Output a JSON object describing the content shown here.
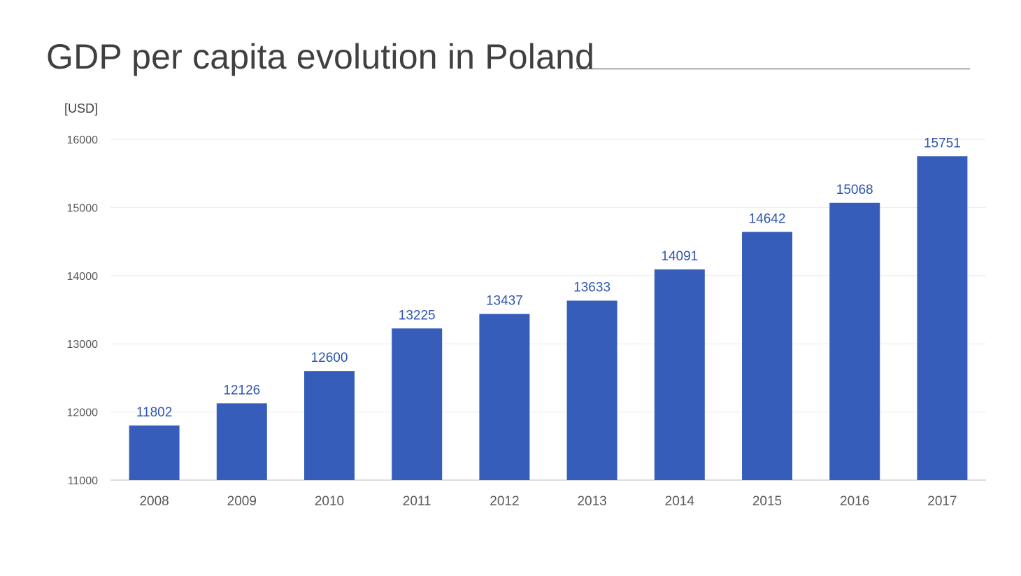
{
  "slide": {
    "title": "GDP per capita evolution in Poland"
  },
  "chart_data": {
    "type": "bar",
    "title": "",
    "ylabel": "[USD]",
    "xlabel": "",
    "categories": [
      "2008",
      "2009",
      "2010",
      "2011",
      "2012",
      "2013",
      "2014",
      "2015",
      "2016",
      "2017"
    ],
    "series": [
      {
        "values": [
          11802,
          12126,
          12600,
          13225,
          13437,
          13633,
          14091,
          14642,
          15068,
          15751
        ],
        "color": "#375dba"
      }
    ],
    "ylim": [
      11000,
      16000
    ],
    "yticks": [
      11000,
      12000,
      13000,
      14000,
      15000,
      16000
    ],
    "grid": true,
    "data_labels": true,
    "legend": "none",
    "colors": {
      "bar": "#375dba",
      "data_label": "#2e55b0",
      "axis_text": "#595959",
      "gridline": "#ececec"
    }
  }
}
